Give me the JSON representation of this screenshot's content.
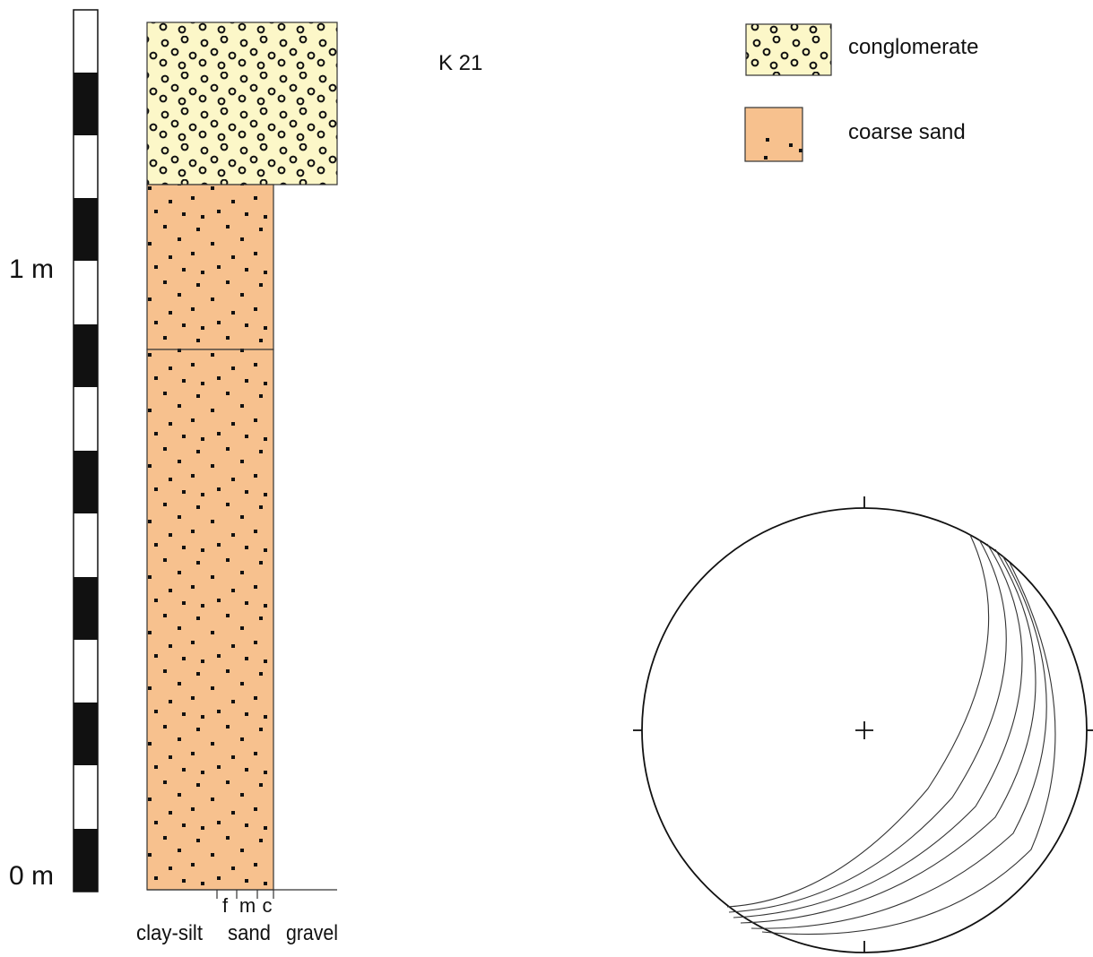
{
  "section_label": "K 21",
  "scale_bar": {
    "top_label": "1 m",
    "bottom_label": "0 m"
  },
  "legend": [
    {
      "key": "conglomerate",
      "label": "conglomerate",
      "color": "#fcf7c8"
    },
    {
      "key": "coarse_sand",
      "label": "coarse sand",
      "color": "#f7c18e"
    }
  ],
  "log_axis": {
    "sand_subclasses": [
      "f",
      "m",
      "c"
    ],
    "classes": [
      "clay-silt",
      "sand",
      "gravel"
    ]
  },
  "colors": {
    "line": "#1a1a1a",
    "scale_black": "#111111"
  }
}
